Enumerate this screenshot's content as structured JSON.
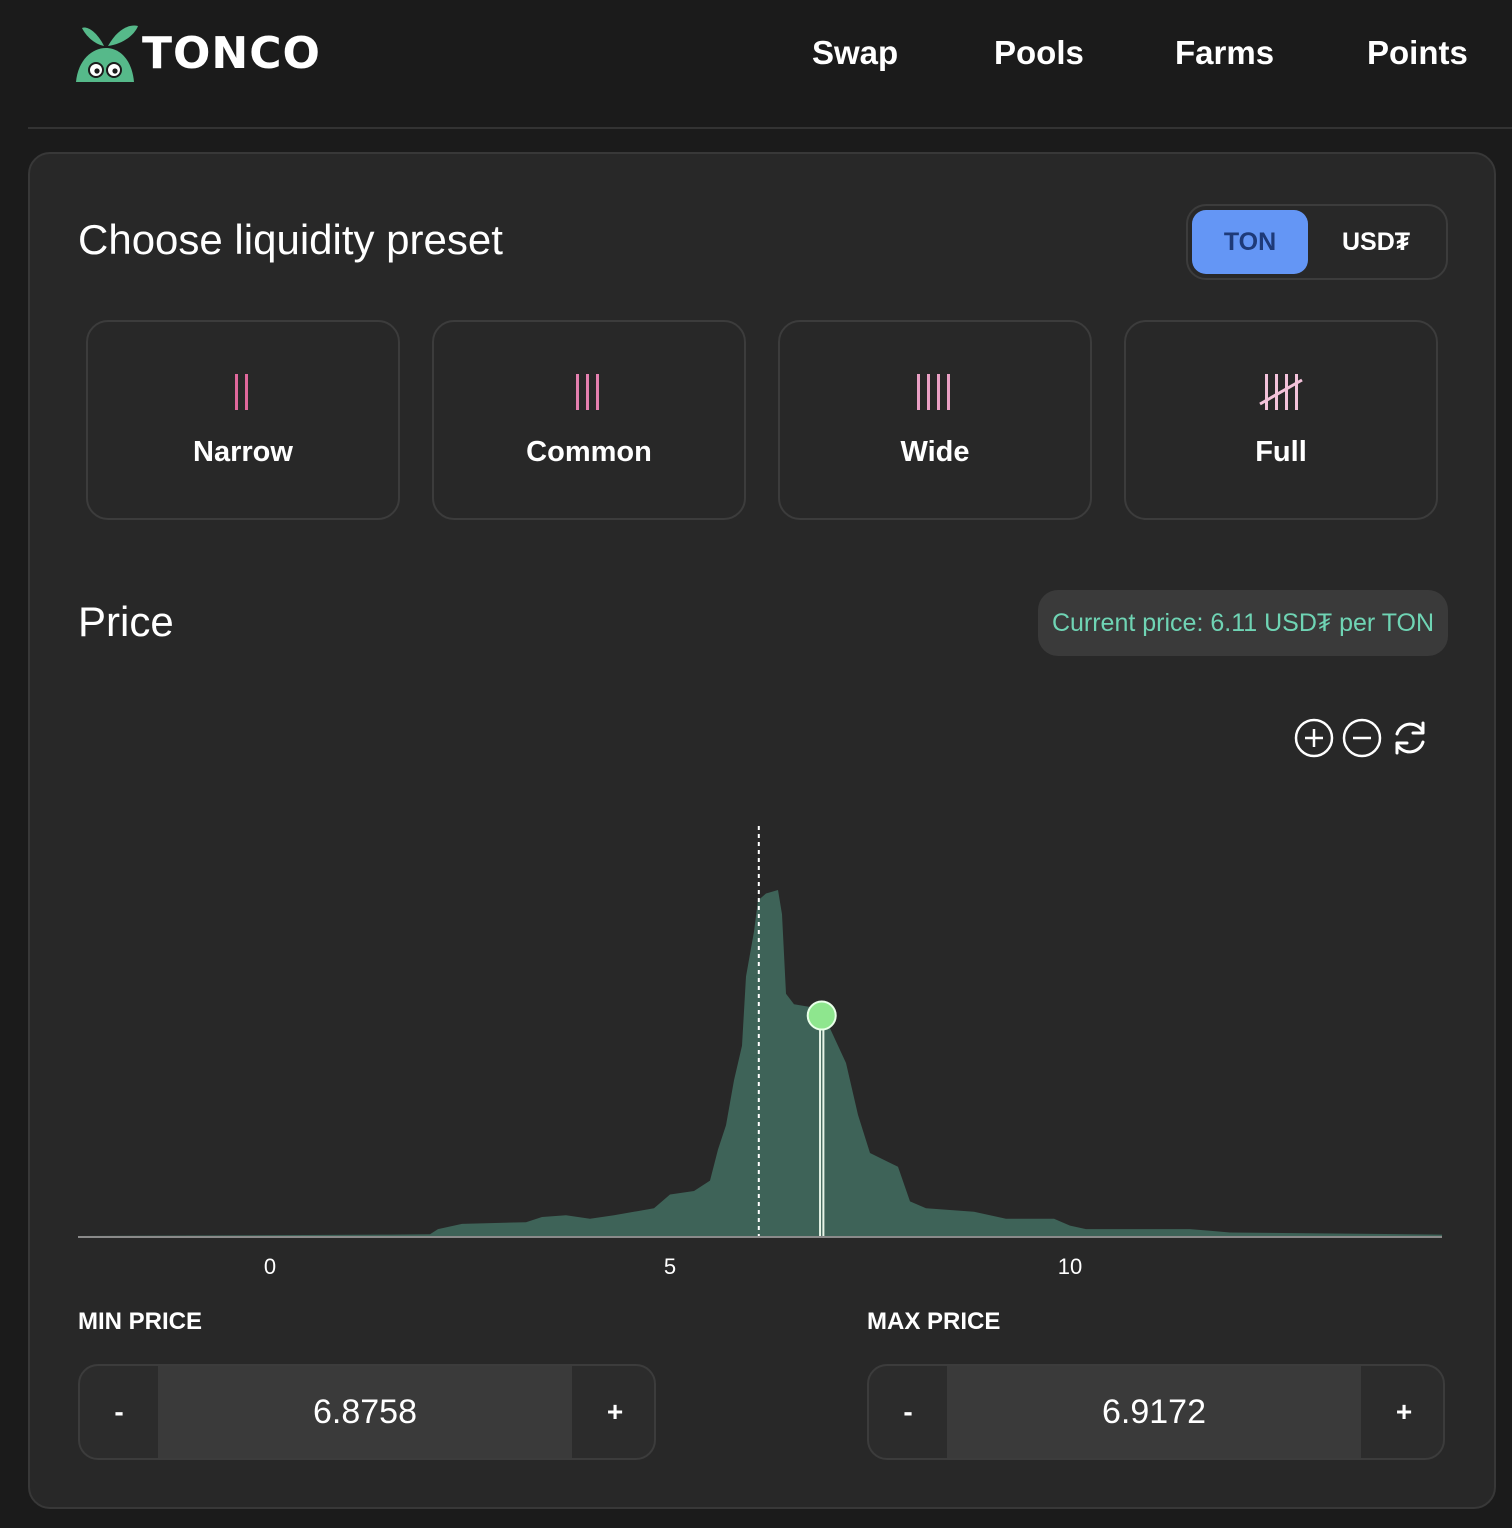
{
  "brand": {
    "name": "TONCO",
    "accent": "#56b98a"
  },
  "nav": {
    "items": [
      "Swap",
      "Pools",
      "Farms",
      "Points"
    ]
  },
  "preset_section": {
    "title": "Choose liquidity preset",
    "token_toggle": {
      "options": [
        "TON",
        "USD₮"
      ],
      "selected": "TON",
      "active_color": "#6496f5"
    },
    "presets": [
      {
        "label": "Narrow",
        "icon": "two-bars-icon"
      },
      {
        "label": "Common",
        "icon": "three-bars-icon"
      },
      {
        "label": "Wide",
        "icon": "four-bars-icon"
      },
      {
        "label": "Full",
        "icon": "tally-five-icon"
      }
    ]
  },
  "price_section": {
    "title": "Price",
    "current_price_text": "Current price: 6.11 USD₮ per TON",
    "zoom_controls": [
      "zoom-in-icon",
      "zoom-out-icon",
      "refresh-icon"
    ]
  },
  "chart_data": {
    "type": "area",
    "x_ticks": [
      0,
      5,
      10
    ],
    "xlim": [
      -2.4,
      14.65
    ],
    "current_price": 6.11,
    "selected_range": [
      6.8758,
      6.9172
    ],
    "area_color": "#3e6358",
    "handle_color": "#8ee68e",
    "liquidity": [
      [
        -2.4,
        0
      ],
      [
        1.5,
        0.004
      ],
      [
        2.0,
        0.005
      ],
      [
        2.1,
        0.02
      ],
      [
        2.4,
        0.035
      ],
      [
        3.2,
        0.04
      ],
      [
        3.4,
        0.055
      ],
      [
        3.7,
        0.06
      ],
      [
        4.0,
        0.05
      ],
      [
        4.3,
        0.06
      ],
      [
        4.8,
        0.08
      ],
      [
        5.0,
        0.12
      ],
      [
        5.3,
        0.13
      ],
      [
        5.5,
        0.16
      ],
      [
        5.6,
        0.25
      ],
      [
        5.7,
        0.32
      ],
      [
        5.8,
        0.45
      ],
      [
        5.9,
        0.55
      ],
      [
        5.95,
        0.75
      ],
      [
        6.05,
        0.88
      ],
      [
        6.1,
        0.97
      ],
      [
        6.2,
        0.99
      ],
      [
        6.35,
        1.0
      ],
      [
        6.4,
        0.93
      ],
      [
        6.45,
        0.7
      ],
      [
        6.55,
        0.67
      ],
      [
        6.8,
        0.66
      ],
      [
        7.0,
        0.6
      ],
      [
        7.2,
        0.5
      ],
      [
        7.35,
        0.35
      ],
      [
        7.5,
        0.24
      ],
      [
        7.85,
        0.2
      ],
      [
        8.0,
        0.1
      ],
      [
        8.2,
        0.08
      ],
      [
        8.8,
        0.07
      ],
      [
        9.2,
        0.05
      ],
      [
        9.5,
        0.05
      ],
      [
        9.8,
        0.05
      ],
      [
        10.0,
        0.03
      ],
      [
        10.2,
        0.02
      ],
      [
        11.3,
        0.02
      ],
      [
        11.5,
        0.02
      ],
      [
        11.75,
        0.015
      ],
      [
        12.0,
        0.01
      ],
      [
        14.65,
        0.004
      ]
    ]
  },
  "min_price": {
    "label": "MIN PRICE",
    "value": "6.8758",
    "minus": "-",
    "plus": "+"
  },
  "max_price": {
    "label": "MAX PRICE",
    "value": "6.9172",
    "minus": "-",
    "plus": "+"
  }
}
